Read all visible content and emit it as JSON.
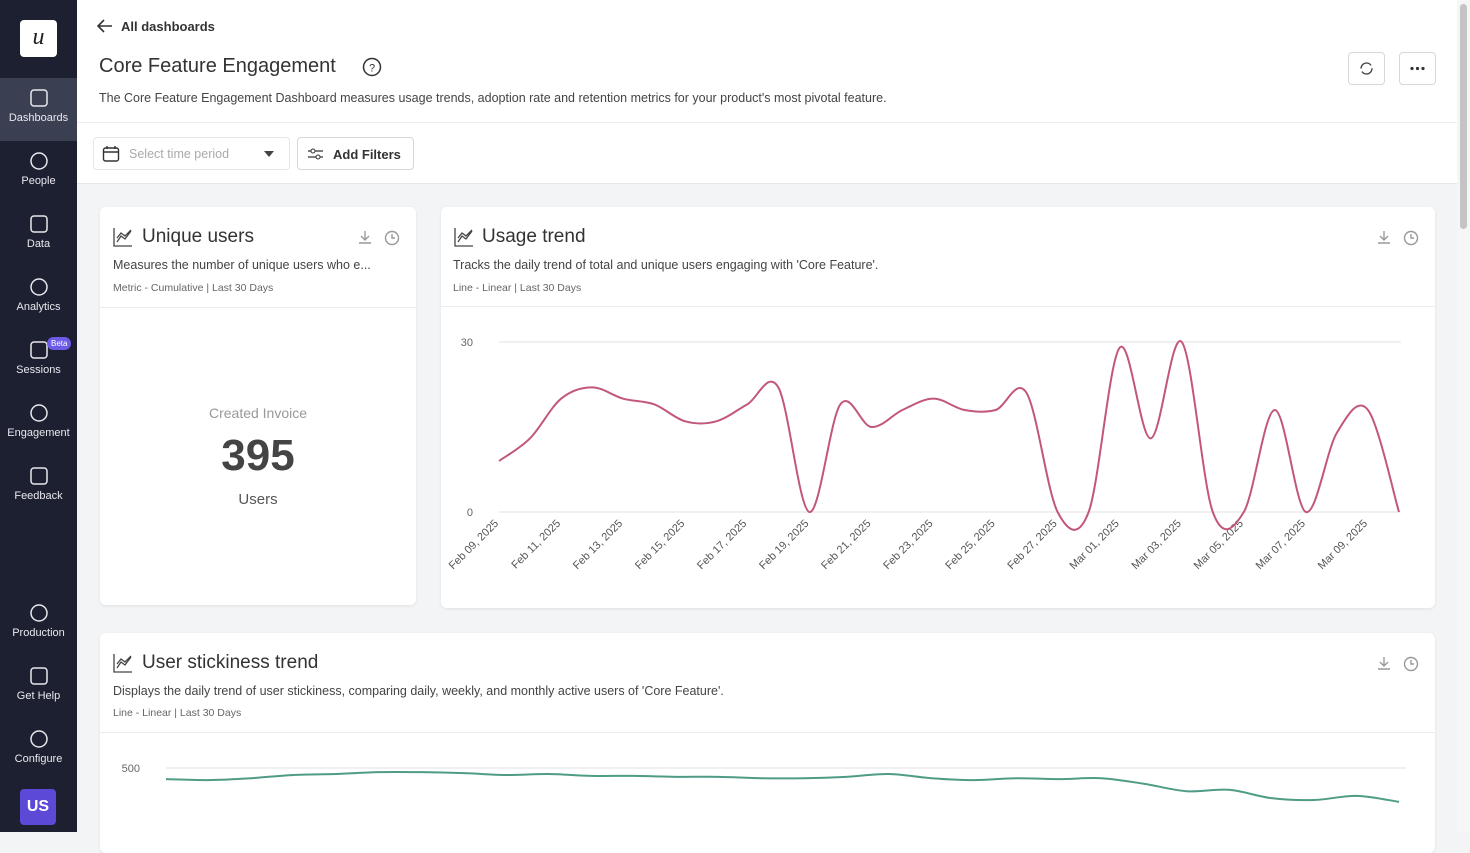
{
  "sidebar": {
    "logo": "u",
    "items": [
      "Dashboards",
      "People",
      "Data",
      "Analytics",
      "Sessions",
      "Engagement",
      "Feedback"
    ],
    "badge": "Beta",
    "bottom": [
      "Production",
      "Get Help",
      "Configure"
    ],
    "avatar": "US"
  },
  "header": {
    "back": "All dashboards",
    "title": "Core Feature Engagement",
    "description": "The Core Feature Engagement Dashboard measures usage trends, adoption rate and retention metrics for your product's most pivotal feature.",
    "time_placeholder": "Select time period",
    "filters_button": "Add Filters"
  },
  "cards": [
    {
      "title": "Unique users",
      "description": "Measures the number of unique users who e...",
      "meta": "Metric - Cumulative | Last 30 Days",
      "metric": {
        "label": "Created Invoice",
        "value": "395",
        "unit": "Users"
      }
    },
    {
      "title": "Usage trend",
      "description": "Tracks the daily trend of total and unique users engaging with 'Core Feature'.",
      "meta": "Line - Linear | Last 30 Days"
    },
    {
      "title": "User stickiness trend",
      "description": "Displays the daily trend of user stickiness, comparing daily, weekly, and monthly active users of 'Core Feature'.",
      "meta": "Line - Linear | Last 30 Days"
    }
  ],
  "chart_data": [
    {
      "type": "line",
      "categories": [
        "Feb 09, 2025",
        null,
        "Feb 11, 2025",
        null,
        "Feb 13, 2025",
        null,
        "Feb 15, 2025",
        null,
        "Feb 17, 2025",
        null,
        "Feb 19, 2025",
        null,
        "Feb 21, 2025",
        null,
        "Feb 23, 2025",
        null,
        "Feb 25, 2025",
        null,
        "Feb 27, 2025",
        null,
        "Mar 01, 2025",
        null,
        "Mar 03, 2025",
        null,
        "Mar 05, 2025",
        null,
        "Mar 07, 2025",
        null,
        "Mar 09, 2025",
        null
      ],
      "values": [
        9,
        13,
        20,
        22,
        20,
        19,
        16,
        16,
        19,
        22,
        0,
        19,
        15,
        18,
        20,
        18,
        18,
        21,
        0,
        0,
        29,
        13,
        30,
        0,
        0,
        18,
        0,
        14,
        18,
        0
      ],
      "color": "#c2577a",
      "ylim": [
        0,
        30
      ],
      "yticks": [
        0,
        30
      ],
      "grid": true
    },
    {
      "type": "line",
      "values": [
        476,
        474,
        478,
        485,
        487,
        491,
        491,
        489,
        485,
        487,
        483,
        483,
        481,
        481,
        478,
        478,
        481,
        487,
        478,
        474,
        478,
        476,
        478,
        466,
        450,
        453,
        435,
        431,
        440,
        427
      ],
      "color": "#4f9c86",
      "ylim": [
        0,
        500
      ],
      "yticks": [
        500
      ],
      "grid": true
    }
  ]
}
